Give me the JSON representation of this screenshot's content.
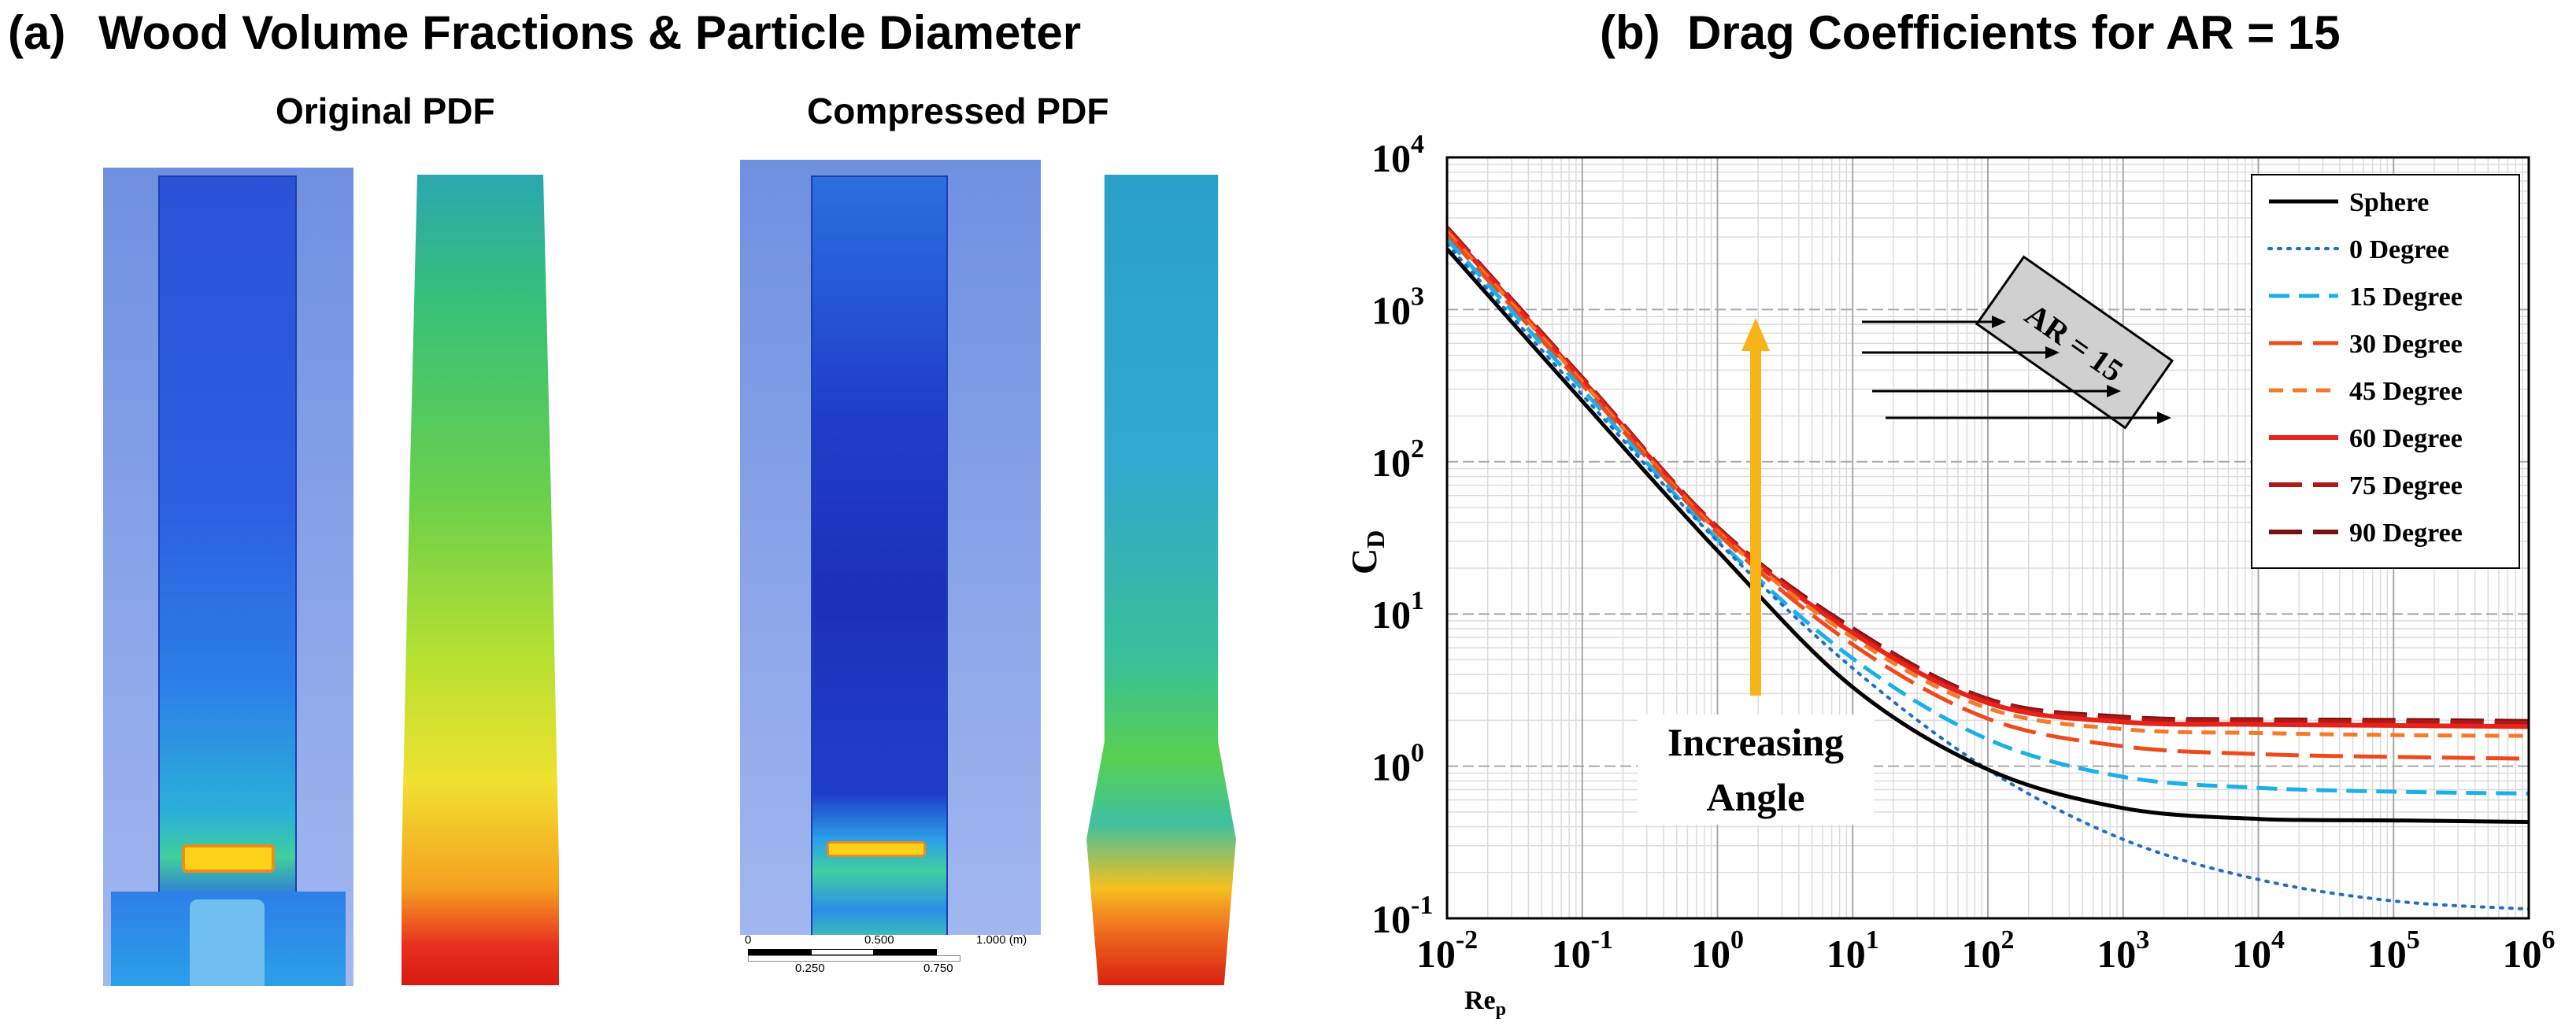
{
  "panel_a": {
    "label": "(a)",
    "title": "Wood Volume Fractions & Particle Diameter",
    "original_label": "Original PDF",
    "compressed_label": "Compressed PDF",
    "scale_bar": {
      "tick_0": "0",
      "tick_0250": "0.250",
      "tick_0500": "0.500",
      "tick_0750": "0.750",
      "tick_1000": "1.000 (m)"
    }
  },
  "panel_b": {
    "label": "(b)",
    "title": "Drag Coefficients for AR = 15"
  },
  "chart_data": {
    "type": "line",
    "title": "Drag Coefficients for AR = 15",
    "xscale": "log",
    "yscale": "log",
    "xlabel": "Re",
    "xlabel_sub": "p",
    "ylabel": "C",
    "ylabel_sub": "D",
    "xlim": [
      0.01,
      1000000
    ],
    "ylim": [
      0.1,
      10000
    ],
    "x_ticks": [
      {
        "value": 0.01,
        "base": "10",
        "exp": "-2"
      },
      {
        "value": 0.1,
        "base": "10",
        "exp": "-1"
      },
      {
        "value": 1,
        "base": "10",
        "exp": "0"
      },
      {
        "value": 10,
        "base": "10",
        "exp": "1"
      },
      {
        "value": 100,
        "base": "10",
        "exp": "2"
      },
      {
        "value": 1000,
        "base": "10",
        "exp": "3"
      },
      {
        "value": 10000,
        "base": "10",
        "exp": "4"
      },
      {
        "value": 100000,
        "base": "10",
        "exp": "5"
      },
      {
        "value": 1000000,
        "base": "10",
        "exp": "6"
      }
    ],
    "y_ticks": [
      {
        "value": 0.1,
        "base": "10",
        "exp": "-1"
      },
      {
        "value": 1,
        "base": "10",
        "exp": "0"
      },
      {
        "value": 10,
        "base": "10",
        "exp": "1"
      },
      {
        "value": 100,
        "base": "10",
        "exp": "2"
      },
      {
        "value": 1000,
        "base": "10",
        "exp": "3"
      },
      {
        "value": 10000,
        "base": "10",
        "exp": "4"
      }
    ],
    "grid": true,
    "legend_position": "top-right",
    "series": [
      {
        "name": "Sphere",
        "color": "#000000",
        "dash": "solid",
        "width": 5,
        "points": [
          [
            0.01,
            2500
          ],
          [
            0.1,
            250
          ],
          [
            1,
            26
          ],
          [
            10,
            3.3
          ],
          [
            100,
            0.95
          ],
          [
            1000,
            0.53
          ],
          [
            10000,
            0.45
          ],
          [
            100000,
            0.44
          ],
          [
            1000000,
            0.43
          ]
        ]
      },
      {
        "name": "0 Degree",
        "color": "#1f6fc4",
        "dash": "dotted",
        "width": 4,
        "points": [
          [
            0.01,
            2700
          ],
          [
            0.1,
            275
          ],
          [
            1,
            30
          ],
          [
            10,
            4.4
          ],
          [
            100,
            0.95
          ],
          [
            1000,
            0.33
          ],
          [
            10000,
            0.18
          ],
          [
            100000,
            0.13
          ],
          [
            1000000,
            0.115
          ]
        ]
      },
      {
        "name": "15 Degree",
        "color": "#1ab0e8",
        "dash": "dash",
        "width": 5,
        "points": [
          [
            0.01,
            2900
          ],
          [
            0.1,
            300
          ],
          [
            1,
            31
          ],
          [
            10,
            5.1
          ],
          [
            100,
            1.5
          ],
          [
            1000,
            0.85
          ],
          [
            10000,
            0.72
          ],
          [
            100000,
            0.68
          ],
          [
            1000000,
            0.66
          ]
        ]
      },
      {
        "name": "30 Degree",
        "color": "#f04a1c",
        "dash": "longdash",
        "width": 5,
        "points": [
          [
            0.01,
            3100
          ],
          [
            0.1,
            320
          ],
          [
            1,
            34
          ],
          [
            10,
            6.3
          ],
          [
            100,
            2.05
          ],
          [
            1000,
            1.35
          ],
          [
            10000,
            1.2
          ],
          [
            100000,
            1.15
          ],
          [
            1000000,
            1.12
          ]
        ]
      },
      {
        "name": "45 Degree",
        "color": "#f47a2a",
        "dash": "shortdash",
        "width": 5,
        "points": [
          [
            0.01,
            3250
          ],
          [
            0.1,
            335
          ],
          [
            1,
            35
          ],
          [
            10,
            7.0
          ],
          [
            100,
            2.4
          ],
          [
            1000,
            1.75
          ],
          [
            10000,
            1.65
          ],
          [
            100000,
            1.6
          ],
          [
            1000000,
            1.58
          ]
        ]
      },
      {
        "name": "60 Degree",
        "color": "#e8231a",
        "dash": "solid",
        "width": 6,
        "points": [
          [
            0.01,
            3350
          ],
          [
            0.1,
            345
          ],
          [
            1,
            36
          ],
          [
            10,
            7.5
          ],
          [
            100,
            2.6
          ],
          [
            1000,
            1.95
          ],
          [
            10000,
            1.88
          ],
          [
            100000,
            1.85
          ],
          [
            1000000,
            1.82
          ]
        ]
      },
      {
        "name": "75 Degree",
        "color": "#b01818",
        "dash": "longdash",
        "width": 6,
        "points": [
          [
            0.01,
            3400
          ],
          [
            0.1,
            350
          ],
          [
            1,
            36.5
          ],
          [
            10,
            7.8
          ],
          [
            100,
            2.7
          ],
          [
            1000,
            2.05
          ],
          [
            10000,
            1.98
          ],
          [
            100000,
            1.95
          ],
          [
            1000000,
            1.92
          ]
        ]
      },
      {
        "name": "90 Degree",
        "color": "#7a1010",
        "dash": "longdash",
        "width": 6,
        "points": [
          [
            0.01,
            3450
          ],
          [
            0.1,
            355
          ],
          [
            1,
            37
          ],
          [
            10,
            8.0
          ],
          [
            100,
            2.75
          ],
          [
            1000,
            2.1
          ],
          [
            10000,
            2.02
          ],
          [
            100000,
            2.0
          ],
          [
            1000000,
            1.97
          ]
        ]
      }
    ],
    "annotations": {
      "increasing_line1": "Increasing",
      "increasing_line2": "Angle",
      "arrow_color": "#f7b318",
      "ar_label": "AR = 15"
    }
  }
}
